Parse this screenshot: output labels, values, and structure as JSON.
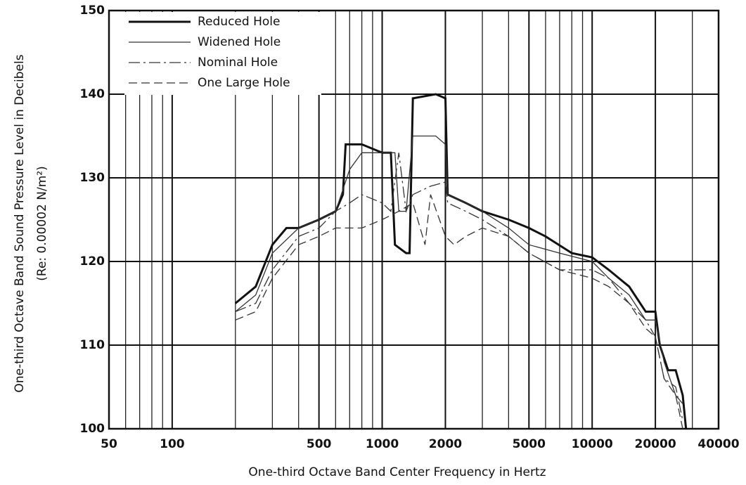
{
  "chart_data": {
    "type": "line",
    "xlabel": "One-third Octave Band Center Frequency in Hertz",
    "ylabel": "One-third Octave Band Sound Pressure Level in Decibels",
    "ylabel2": "(Re: 0.00002 N/m²)",
    "xscale": "log",
    "xlim": [
      50,
      40000
    ],
    "ylim": [
      100,
      150
    ],
    "xticks": [
      50,
      100,
      500,
      1000,
      2000,
      5000,
      10000,
      20000,
      40000
    ],
    "yticks": [
      100,
      110,
      120,
      130,
      140,
      150
    ],
    "grid": true,
    "legend": "upper left",
    "series": [
      {
        "name": "Reduced Hole",
        "color": "#111111",
        "width": 3,
        "style": "solid",
        "x": [
          200,
          250,
          300,
          350,
          400,
          500,
          600,
          650,
          670,
          800,
          1000,
          1100,
          1150,
          1300,
          1350,
          1400,
          1800,
          2000,
          2050,
          2500,
          3000,
          4000,
          5000,
          6000,
          8000,
          10000,
          12000,
          15000,
          18000,
          20000,
          21000,
          23000,
          25000,
          27000,
          28000
        ],
        "values": [
          115,
          117,
          122,
          124,
          124,
          125,
          126,
          128,
          134,
          134,
          133,
          133,
          122,
          121,
          121,
          139.5,
          140,
          139.5,
          128,
          127,
          126,
          125,
          124,
          123,
          121,
          120.5,
          119,
          117,
          114,
          114,
          110,
          107,
          107,
          104,
          100
        ]
      },
      {
        "name": "Widened Hole",
        "color": "#333333",
        "width": 1.3,
        "style": "solid",
        "x": [
          200,
          250,
          300,
          400,
          500,
          600,
          700,
          800,
          1000,
          1150,
          1200,
          1300,
          1400,
          1800,
          2000,
          2050,
          2500,
          3000,
          4000,
          5000,
          7000,
          10000,
          12000,
          15000,
          18000,
          20000,
          22000,
          25000,
          27000
        ],
        "values": [
          114,
          116,
          121,
          124,
          125,
          126,
          131,
          133,
          133,
          133,
          126,
          126,
          135,
          135,
          134,
          128,
          127,
          126,
          124,
          122,
          121,
          120,
          118,
          116,
          113,
          113,
          108,
          104,
          103
        ]
      },
      {
        "name": "Nominal Hole",
        "color": "#333333",
        "width": 1.3,
        "style": "dashdot",
        "x": [
          200,
          250,
          300,
          400,
          500,
          600,
          700,
          800,
          1000,
          1100,
          1200,
          1300,
          1400,
          1700,
          2000,
          2050,
          2500,
          3000,
          4000,
          5000,
          7000,
          10000,
          12000,
          15000,
          18000,
          20000,
          22000,
          25000,
          27000
        ],
        "values": [
          114,
          115,
          119,
          123,
          124,
          126,
          127,
          128,
          127,
          126,
          133,
          126,
          128,
          129,
          129.5,
          127,
          126,
          125,
          123,
          121,
          119,
          119,
          118,
          115,
          113,
          111,
          106,
          105,
          101
        ]
      },
      {
        "name": "One Large Hole",
        "color": "#333333",
        "width": 1.3,
        "style": "dashed",
        "x": [
          200,
          250,
          300,
          400,
          500,
          600,
          700,
          800,
          1000,
          1200,
          1400,
          1600,
          1700,
          2000,
          2200,
          2500,
          3000,
          4000,
          5000,
          7000,
          10000,
          12000,
          15000,
          18000,
          20000,
          22000,
          25000,
          27000
        ],
        "values": [
          113,
          114,
          118,
          122,
          123,
          124,
          124,
          124,
          125,
          126,
          127,
          122,
          128,
          123,
          122,
          123,
          124,
          123,
          121,
          119,
          118,
          117,
          115,
          112,
          111,
          106,
          104,
          100
        ]
      }
    ]
  }
}
